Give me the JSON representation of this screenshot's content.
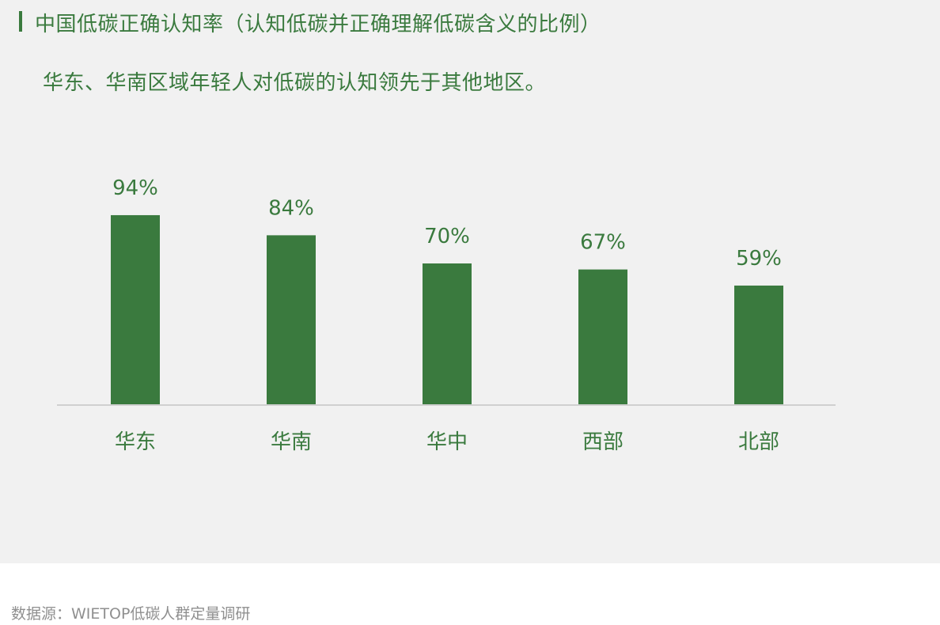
{
  "title": "中国低碳正确认知率（认知低碳并正确理解低碳含义的比例）",
  "subtitle": "华东、华南区域年轻人对低碳的认知领先于其他地区。",
  "source": "数据源：WIETOP低碳人群定量调研",
  "colors": {
    "bar": "#3a7a3e",
    "text": "#3a7a3e",
    "panel": "#f1f1f1",
    "axis": "#d0d0d0",
    "source": "#8f8f8f"
  },
  "chart_data": {
    "type": "bar",
    "categories": [
      "华东",
      "华南",
      "华中",
      "西部",
      "北部"
    ],
    "values": [
      94,
      84,
      70,
      67,
      59
    ],
    "data_labels": [
      "94%",
      "84%",
      "70%",
      "67%",
      "59%"
    ],
    "unit": "%",
    "ylim": [
      0,
      100
    ],
    "grid": false,
    "legend": "none"
  }
}
